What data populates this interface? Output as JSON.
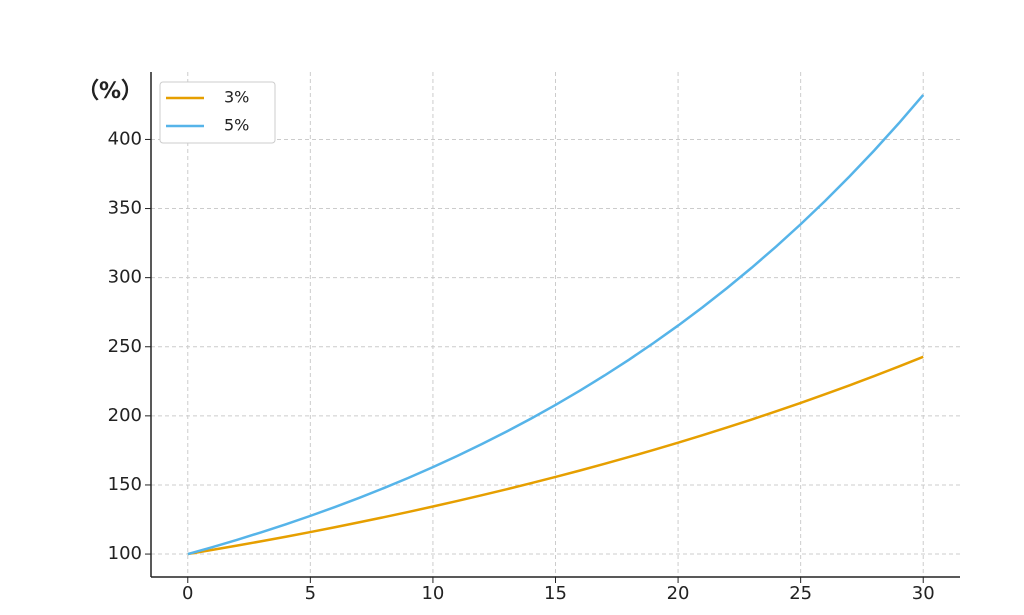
{
  "chart_data": {
    "type": "line",
    "y_label": "（%）",
    "x": [
      0,
      1,
      2,
      3,
      4,
      5,
      6,
      7,
      8,
      9,
      10,
      11,
      12,
      13,
      14,
      15,
      16,
      17,
      18,
      19,
      20,
      21,
      22,
      23,
      24,
      25,
      26,
      27,
      28,
      29,
      30
    ],
    "series": [
      {
        "name": "3%",
        "color": "#e69f00",
        "values": [
          100,
          103,
          106.09,
          109.27,
          112.55,
          115.93,
          119.41,
          122.99,
          126.68,
          130.48,
          134.39,
          138.42,
          142.58,
          146.85,
          151.26,
          155.8,
          160.47,
          165.28,
          170.24,
          175.35,
          180.61,
          186.03,
          191.61,
          197.36,
          203.28,
          209.38,
          215.66,
          222.13,
          228.79,
          235.66,
          242.73
        ]
      },
      {
        "name": "5%",
        "color": "#56b4e9",
        "values": [
          100,
          105,
          110.25,
          115.76,
          121.55,
          127.63,
          134.01,
          140.71,
          147.75,
          155.13,
          162.89,
          171.03,
          179.59,
          188.56,
          197.99,
          207.89,
          218.29,
          229.2,
          240.66,
          252.7,
          265.33,
          278.6,
          292.53,
          307.15,
          322.51,
          338.64,
          355.57,
          373.35,
          392.01,
          411.61,
          432.19
        ]
      }
    ],
    "xlim": [
      -1.5,
      31.5
    ],
    "xticks": [
      0,
      5,
      10,
      15,
      20,
      25,
      30
    ],
    "ylim": [
      83.4,
      448.8
    ],
    "yticks": [
      100,
      150,
      200,
      250,
      300,
      350,
      400
    ],
    "grid": true,
    "legend": "upper-left"
  }
}
